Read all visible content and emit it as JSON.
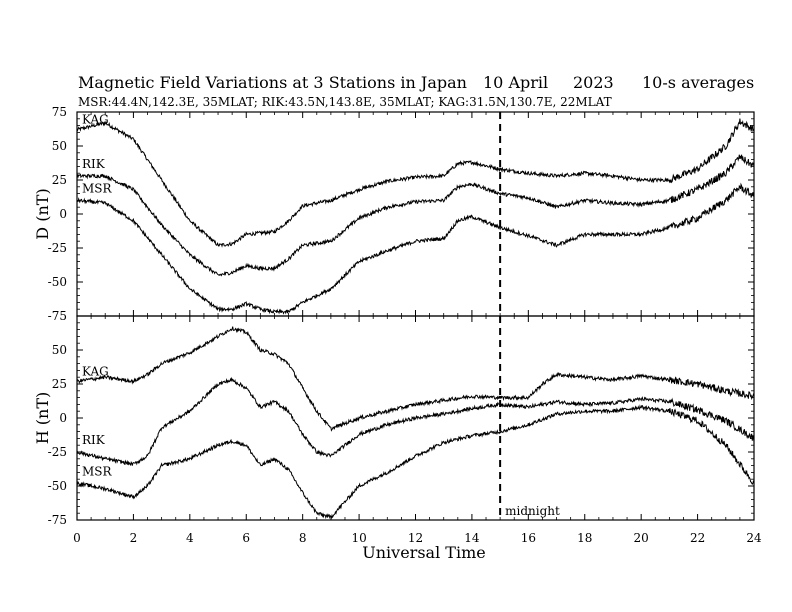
{
  "chart_data": {
    "type": "line",
    "title": "Magnetic Field Variations at 3 Stations in Japan",
    "date": "10  April",
    "year": "2023",
    "averaging": "10-s averages",
    "subtitle": "MSR:44.4N,142.3E, 35MLAT;  RIK:43.5N,143.8E, 35MLAT;  KAG:31.5N,130.7E, 22MLAT",
    "xlabel": "Universal Time",
    "xlim": [
      0,
      24
    ],
    "xticks": [
      0,
      2,
      4,
      6,
      8,
      10,
      12,
      14,
      16,
      18,
      20,
      22,
      24
    ],
    "annotation": {
      "x": 15,
      "label": "midnight"
    },
    "panels": [
      {
        "ylabel": "D (nT)",
        "ylim": [
          -75,
          75
        ],
        "yticks": [
          75,
          50,
          25,
          0,
          -25,
          -50,
          -75
        ],
        "series": [
          {
            "name": "KAG",
            "points": [
              [
                0,
                62
              ],
              [
                1,
                67
              ],
              [
                2,
                55
              ],
              [
                3,
                25
              ],
              [
                4,
                -5
              ],
              [
                5,
                -23
              ],
              [
                5.5,
                -22
              ],
              [
                6,
                -15
              ],
              [
                6.5,
                -14
              ],
              [
                7,
                -13
              ],
              [
                7.5,
                -5
              ],
              [
                8,
                6
              ],
              [
                9,
                10
              ],
              [
                10,
                18
              ],
              [
                11,
                24
              ],
              [
                12,
                27
              ],
              [
                13,
                28
              ],
              [
                13.5,
                37
              ],
              [
                14,
                38
              ],
              [
                15,
                33
              ],
              [
                16,
                30
              ],
              [
                17,
                28
              ],
              [
                18,
                30
              ],
              [
                19,
                28
              ],
              [
                20,
                25
              ],
              [
                21,
                25
              ],
              [
                22,
                33
              ],
              [
                23,
                50
              ],
              [
                23.5,
                68
              ],
              [
                24,
                62
              ]
            ]
          },
          {
            "name": "RIK",
            "points": [
              [
                0,
                28
              ],
              [
                1,
                28
              ],
              [
                2,
                18
              ],
              [
                3,
                -8
              ],
              [
                4,
                -30
              ],
              [
                5,
                -45
              ],
              [
                5.5,
                -43
              ],
              [
                6,
                -38
              ],
              [
                6.5,
                -40
              ],
              [
                7,
                -40
              ],
              [
                7.5,
                -33
              ],
              [
                8,
                -23
              ],
              [
                9,
                -20
              ],
              [
                10,
                -3
              ],
              [
                11,
                5
              ],
              [
                12,
                9
              ],
              [
                13,
                10
              ],
              [
                13.5,
                20
              ],
              [
                14,
                22
              ],
              [
                15,
                15
              ],
              [
                16,
                12
              ],
              [
                17,
                5
              ],
              [
                18,
                10
              ],
              [
                19,
                8
              ],
              [
                20,
                7
              ],
              [
                21,
                10
              ],
              [
                22,
                18
              ],
              [
                23,
                30
              ],
              [
                23.5,
                42
              ],
              [
                24,
                35
              ]
            ]
          },
          {
            "name": "MSR",
            "points": [
              [
                0,
                10
              ],
              [
                1,
                8
              ],
              [
                2,
                -5
              ],
              [
                3,
                -30
              ],
              [
                4,
                -55
              ],
              [
                5,
                -70
              ],
              [
                5.5,
                -70
              ],
              [
                6,
                -66
              ],
              [
                6.5,
                -70
              ],
              [
                7,
                -72
              ],
              [
                7.5,
                -72
              ],
              [
                8,
                -65
              ],
              [
                9,
                -55
              ],
              [
                10,
                -35
              ],
              [
                11,
                -27
              ],
              [
                12,
                -20
              ],
              [
                13,
                -18
              ],
              [
                13.5,
                -5
              ],
              [
                14,
                -2
              ],
              [
                15,
                -10
              ],
              [
                16,
                -16
              ],
              [
                17,
                -23
              ],
              [
                18,
                -15
              ],
              [
                19,
                -15
              ],
              [
                20,
                -15
              ],
              [
                21,
                -10
              ],
              [
                22,
                -3
              ],
              [
                23,
                10
              ],
              [
                23.5,
                20
              ],
              [
                24,
                13
              ]
            ]
          }
        ]
      },
      {
        "ylabel": "H (nT)",
        "ylim": [
          -75,
          75
        ],
        "yticks": [
          75,
          50,
          25,
          0,
          -25,
          -50,
          -75
        ],
        "series": [
          {
            "name": "KAG",
            "points": [
              [
                0,
                27
              ],
              [
                1,
                30
              ],
              [
                2,
                27
              ],
              [
                2.5,
                32
              ],
              [
                3,
                40
              ],
              [
                4,
                48
              ],
              [
                5,
                60
              ],
              [
                5.5,
                66
              ],
              [
                6,
                63
              ],
              [
                6.5,
                50
              ],
              [
                7,
                47
              ],
              [
                7.5,
                40
              ],
              [
                8,
                22
              ],
              [
                8.5,
                5
              ],
              [
                9,
                -8
              ],
              [
                10,
                0
              ],
              [
                11,
                5
              ],
              [
                12,
                10
              ],
              [
                13,
                13
              ],
              [
                14,
                16
              ],
              [
                15,
                15
              ],
              [
                16,
                15
              ],
              [
                16.5,
                25
              ],
              [
                17,
                32
              ],
              [
                18,
                30
              ],
              [
                19,
                28
              ],
              [
                20,
                31
              ],
              [
                21,
                28
              ],
              [
                22,
                25
              ],
              [
                23,
                20
              ],
              [
                24,
                16
              ]
            ]
          },
          {
            "name": "RIK",
            "points": [
              [
                0,
                -25
              ],
              [
                1,
                -30
              ],
              [
                2,
                -34
              ],
              [
                2.5,
                -28
              ],
              [
                3,
                -7
              ],
              [
                4,
                5
              ],
              [
                5,
                25
              ],
              [
                5.5,
                28
              ],
              [
                6,
                22
              ],
              [
                6.5,
                8
              ],
              [
                7,
                12
              ],
              [
                7.5,
                5
              ],
              [
                8,
                -12
              ],
              [
                8.5,
                -25
              ],
              [
                9,
                -28
              ],
              [
                10,
                -12
              ],
              [
                11,
                -5
              ],
              [
                12,
                0
              ],
              [
                13,
                3
              ],
              [
                14,
                7
              ],
              [
                15,
                10
              ],
              [
                16,
                8
              ],
              [
                17,
                12
              ],
              [
                18,
                10
              ],
              [
                19,
                11
              ],
              [
                20,
                14
              ],
              [
                21,
                12
              ],
              [
                22,
                6
              ],
              [
                23,
                -2
              ],
              [
                24,
                -15
              ]
            ]
          },
          {
            "name": "MSR",
            "points": [
              [
                0,
                -48
              ],
              [
                1,
                -52
              ],
              [
                2,
                -58
              ],
              [
                2.5,
                -50
              ],
              [
                3,
                -35
              ],
              [
                4,
                -30
              ],
              [
                5,
                -20
              ],
              [
                5.5,
                -17
              ],
              [
                6,
                -20
              ],
              [
                6.5,
                -35
              ],
              [
                7,
                -30
              ],
              [
                7.5,
                -38
              ],
              [
                8,
                -55
              ],
              [
                8.5,
                -70
              ],
              [
                9,
                -73
              ],
              [
                10,
                -50
              ],
              [
                11,
                -40
              ],
              [
                12,
                -28
              ],
              [
                13,
                -18
              ],
              [
                14,
                -13
              ],
              [
                15,
                -10
              ],
              [
                16,
                -5
              ],
              [
                17,
                3
              ],
              [
                18,
                5
              ],
              [
                19,
                5
              ],
              [
                20,
                8
              ],
              [
                21,
                5
              ],
              [
                22,
                -2
              ],
              [
                23,
                -20
              ],
              [
                24,
                -48
              ]
            ]
          }
        ]
      }
    ]
  }
}
